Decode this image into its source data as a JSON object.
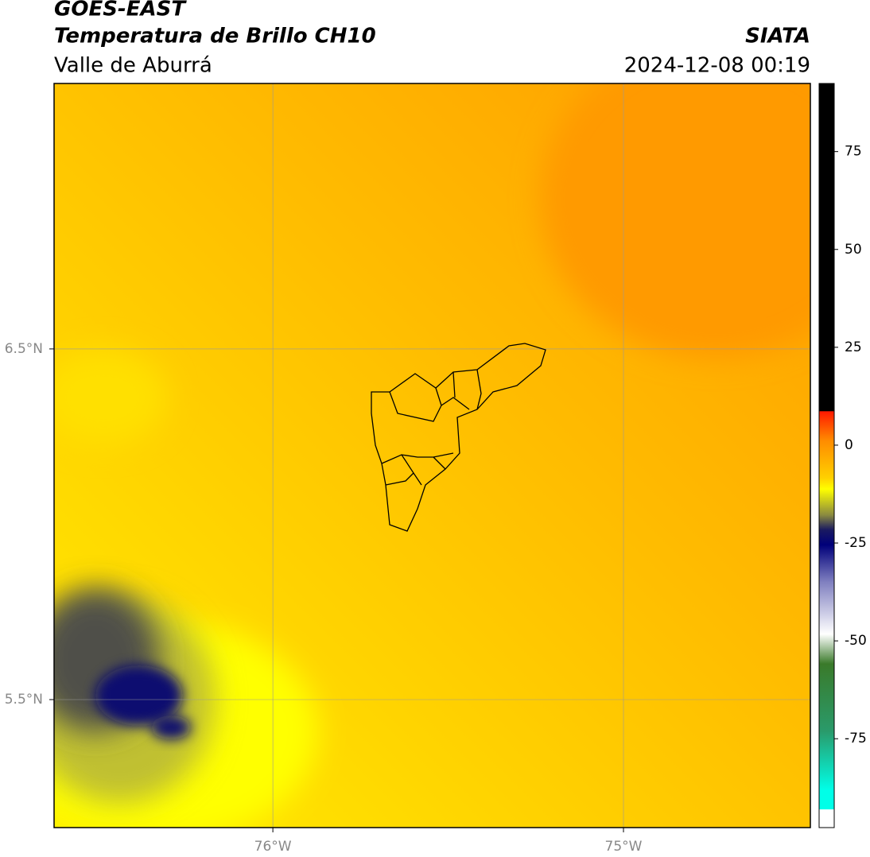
{
  "header": {
    "title": "GOES-EAST",
    "subtitle": "Temperatura de Brillo CH10",
    "region": "Valle de Aburrá",
    "source": "SIATA",
    "timestamp": "2024-12-08 00:19"
  },
  "map": {
    "xlim": [
      -76.624,
      -74.467
    ],
    "ylim": [
      5.135,
      7.257
    ],
    "xticks": [
      {
        "value": -76,
        "label": "76°W"
      },
      {
        "value": -75,
        "label": "75°W"
      }
    ],
    "yticks": [
      {
        "value": 6.5,
        "label": "6.5°N"
      },
      {
        "value": 5.5,
        "label": "5.5°N"
      }
    ],
    "grid": true
  },
  "colorbar": {
    "lim": [
      -97.7,
      92.4
    ],
    "ticks": [
      75,
      50,
      25,
      0,
      -25,
      -50,
      -75
    ]
  }
}
